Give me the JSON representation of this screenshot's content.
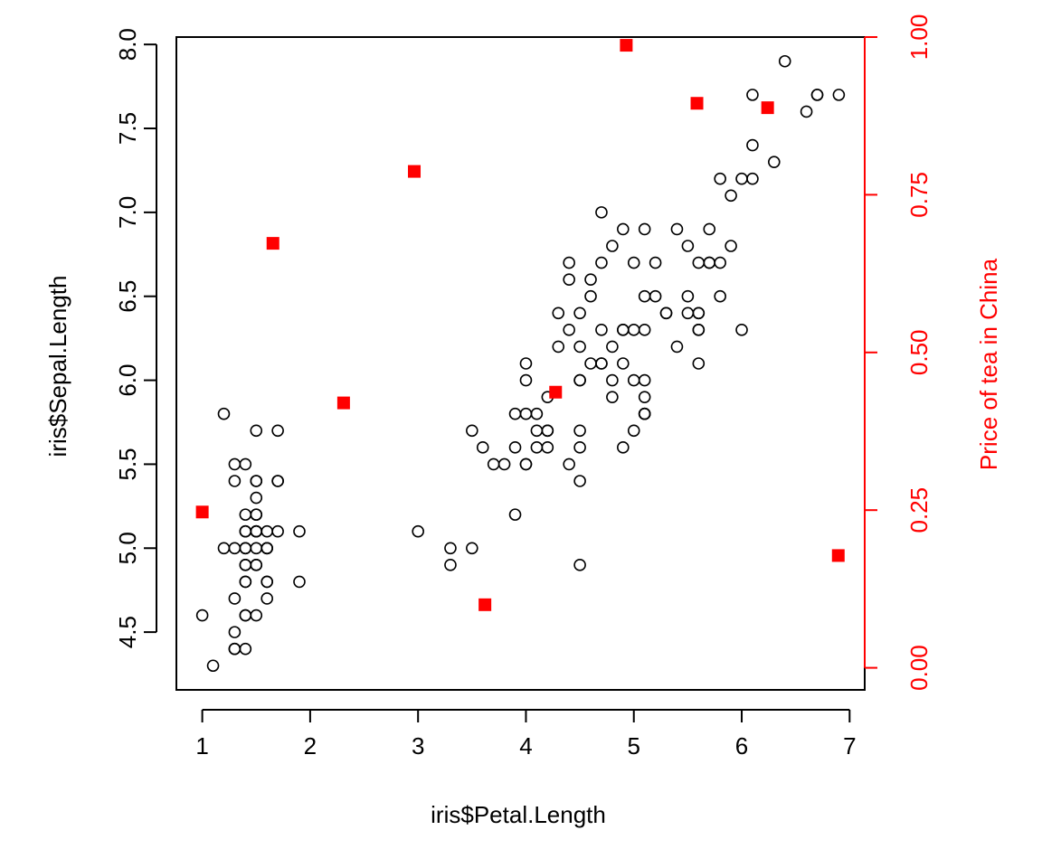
{
  "chart_data": {
    "type": "scatter",
    "xlabel": "iris$Petal.Length",
    "ylabel": "iris$Sepal.Length",
    "y2label": "Price of tea in China",
    "xlim": [
      0.76,
      7.14
    ],
    "ylim": [
      4.156,
      8.044
    ],
    "y2lim": [
      -0.035,
      1.0
    ],
    "xticks": [
      "1",
      "2",
      "3",
      "4",
      "5",
      "6",
      "7"
    ],
    "yticks": [
      "4.5",
      "5.0",
      "5.5",
      "6.0",
      "6.5",
      "7.0",
      "7.5",
      "8.0"
    ],
    "y2ticks": [
      "0.00",
      "0.25",
      "0.50",
      "0.75",
      "1.00"
    ],
    "grid": false,
    "colors": {
      "primary": "#000000",
      "secondary": "#ff0000"
    },
    "series": [
      {
        "marker": "open-circle",
        "color": "#000000",
        "axis": "left",
        "points": [
          [
            1.4,
            5.1
          ],
          [
            1.4,
            4.9
          ],
          [
            1.3,
            4.7
          ],
          [
            1.5,
            4.6
          ],
          [
            1.4,
            5.0
          ],
          [
            1.7,
            5.4
          ],
          [
            1.4,
            4.6
          ],
          [
            1.5,
            5.0
          ],
          [
            1.4,
            4.4
          ],
          [
            1.5,
            4.9
          ],
          [
            1.5,
            5.4
          ],
          [
            1.6,
            4.8
          ],
          [
            1.4,
            4.8
          ],
          [
            1.1,
            4.3
          ],
          [
            1.2,
            5.8
          ],
          [
            1.5,
            5.7
          ],
          [
            1.3,
            5.4
          ],
          [
            1.4,
            5.1
          ],
          [
            1.7,
            5.7
          ],
          [
            1.5,
            5.1
          ],
          [
            1.7,
            5.4
          ],
          [
            1.5,
            5.1
          ],
          [
            1.0,
            4.6
          ],
          [
            1.7,
            5.1
          ],
          [
            1.9,
            4.8
          ],
          [
            1.6,
            5.0
          ],
          [
            1.6,
            5.0
          ],
          [
            1.5,
            5.2
          ],
          [
            1.4,
            5.2
          ],
          [
            1.6,
            4.7
          ],
          [
            1.6,
            4.8
          ],
          [
            1.5,
            5.4
          ],
          [
            1.5,
            5.2
          ],
          [
            1.4,
            5.5
          ],
          [
            1.5,
            4.9
          ],
          [
            1.2,
            5.0
          ],
          [
            1.3,
            5.5
          ],
          [
            1.4,
            4.9
          ],
          [
            1.3,
            4.4
          ],
          [
            1.5,
            5.1
          ],
          [
            1.3,
            5.0
          ],
          [
            1.3,
            4.5
          ],
          [
            1.3,
            4.4
          ],
          [
            1.6,
            5.0
          ],
          [
            1.9,
            5.1
          ],
          [
            1.4,
            4.8
          ],
          [
            1.6,
            5.1
          ],
          [
            1.4,
            4.6
          ],
          [
            1.5,
            5.3
          ],
          [
            1.4,
            5.0
          ],
          [
            4.7,
            7.0
          ],
          [
            4.5,
            6.4
          ],
          [
            4.9,
            6.9
          ],
          [
            4.0,
            5.5
          ],
          [
            4.6,
            6.5
          ],
          [
            4.5,
            5.7
          ],
          [
            4.7,
            6.3
          ],
          [
            3.3,
            4.9
          ],
          [
            4.6,
            6.6
          ],
          [
            3.9,
            5.2
          ],
          [
            3.5,
            5.0
          ],
          [
            4.2,
            5.9
          ],
          [
            4.0,
            6.0
          ],
          [
            4.7,
            6.1
          ],
          [
            3.6,
            5.6
          ],
          [
            4.4,
            6.7
          ],
          [
            4.5,
            5.6
          ],
          [
            4.1,
            5.8
          ],
          [
            4.5,
            6.2
          ],
          [
            3.9,
            5.6
          ],
          [
            4.8,
            5.9
          ],
          [
            4.0,
            6.1
          ],
          [
            4.9,
            6.3
          ],
          [
            4.7,
            6.1
          ],
          [
            4.3,
            6.4
          ],
          [
            4.4,
            6.6
          ],
          [
            4.8,
            6.8
          ],
          [
            5.0,
            6.7
          ],
          [
            4.5,
            6.0
          ],
          [
            3.5,
            5.7
          ],
          [
            3.8,
            5.5
          ],
          [
            3.7,
            5.5
          ],
          [
            3.9,
            5.8
          ],
          [
            5.1,
            6.0
          ],
          [
            4.5,
            5.4
          ],
          [
            4.5,
            6.0
          ],
          [
            4.7,
            6.7
          ],
          [
            4.4,
            6.3
          ],
          [
            4.1,
            5.6
          ],
          [
            4.0,
            5.5
          ],
          [
            4.4,
            5.5
          ],
          [
            4.6,
            6.1
          ],
          [
            4.0,
            5.8
          ],
          [
            3.3,
            5.0
          ],
          [
            4.2,
            5.6
          ],
          [
            4.2,
            5.7
          ],
          [
            4.2,
            5.7
          ],
          [
            4.3,
            6.2
          ],
          [
            3.0,
            5.1
          ],
          [
            4.1,
            5.7
          ],
          [
            6.0,
            6.3
          ],
          [
            5.1,
            5.8
          ],
          [
            5.9,
            7.1
          ],
          [
            5.6,
            6.3
          ],
          [
            5.8,
            6.5
          ],
          [
            6.6,
            7.6
          ],
          [
            4.5,
            4.9
          ],
          [
            6.3,
            7.3
          ],
          [
            5.8,
            6.7
          ],
          [
            6.1,
            7.2
          ],
          [
            5.1,
            6.5
          ],
          [
            5.3,
            6.4
          ],
          [
            5.5,
            6.8
          ],
          [
            5.0,
            5.7
          ],
          [
            5.1,
            5.8
          ],
          [
            5.3,
            6.4
          ],
          [
            5.5,
            6.5
          ],
          [
            6.7,
            7.7
          ],
          [
            6.9,
            7.7
          ],
          [
            5.0,
            6.0
          ],
          [
            5.7,
            6.9
          ],
          [
            4.9,
            5.6
          ],
          [
            6.7,
            7.7
          ],
          [
            4.9,
            6.3
          ],
          [
            5.7,
            6.7
          ],
          [
            6.0,
            7.2
          ],
          [
            4.8,
            6.2
          ],
          [
            4.9,
            6.1
          ],
          [
            5.6,
            6.4
          ],
          [
            5.8,
            7.2
          ],
          [
            6.1,
            7.4
          ],
          [
            6.4,
            7.9
          ],
          [
            5.6,
            6.4
          ],
          [
            5.1,
            6.3
          ],
          [
            5.6,
            6.1
          ],
          [
            6.1,
            7.7
          ],
          [
            5.6,
            6.3
          ],
          [
            5.5,
            6.4
          ],
          [
            4.8,
            6.0
          ],
          [
            5.4,
            6.9
          ],
          [
            5.6,
            6.7
          ],
          [
            5.1,
            6.9
          ],
          [
            5.1,
            5.8
          ],
          [
            5.9,
            6.8
          ],
          [
            5.7,
            6.7
          ],
          [
            5.2,
            6.7
          ],
          [
            5.0,
            6.3
          ],
          [
            5.2,
            6.5
          ],
          [
            5.4,
            6.2
          ],
          [
            5.1,
            5.9
          ]
        ]
      },
      {
        "marker": "filled-square",
        "color": "#ff0000",
        "axis": "right",
        "points": [
          [
            1.0,
            0.247
          ],
          [
            1.655,
            0.673
          ],
          [
            2.31,
            0.42
          ],
          [
            2.965,
            0.787
          ],
          [
            3.62,
            0.1
          ],
          [
            4.275,
            0.437
          ],
          [
            4.93,
            0.987
          ],
          [
            5.585,
            0.895
          ],
          [
            6.24,
            0.888
          ],
          [
            6.895,
            0.178
          ]
        ]
      }
    ]
  }
}
